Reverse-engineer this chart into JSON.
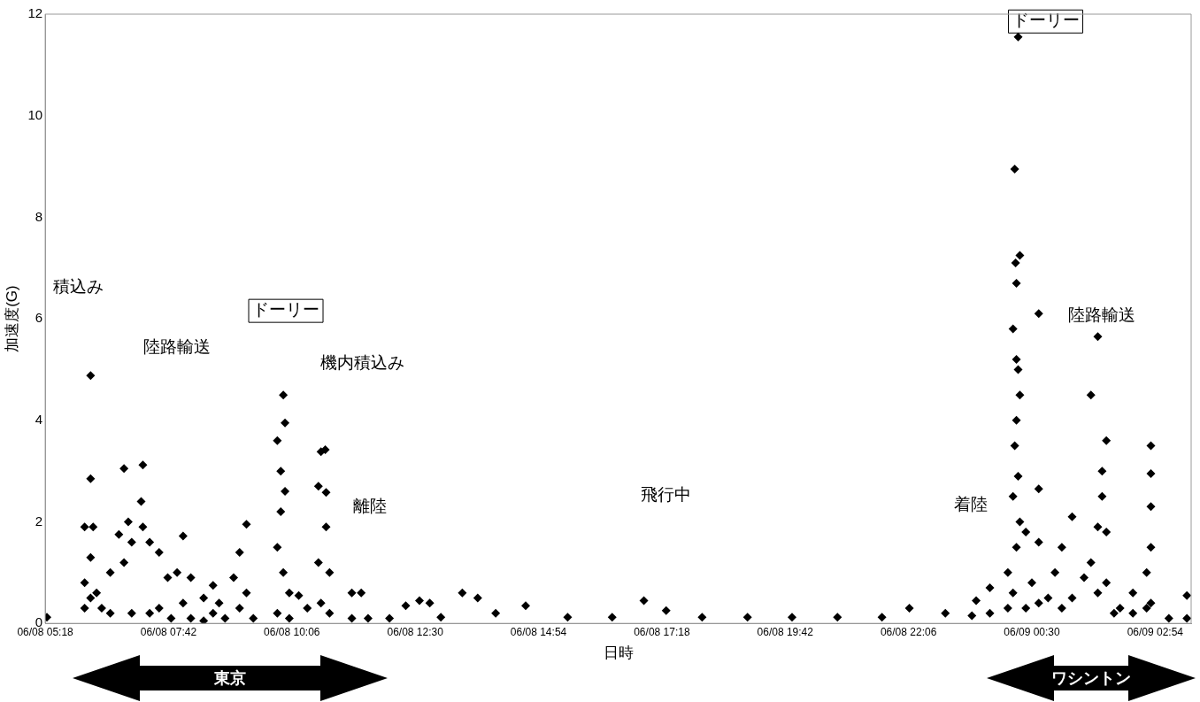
{
  "chart_data": {
    "type": "scatter",
    "xlabel": "日時",
    "ylabel": "加速度(G)",
    "xlim": [
      "--06-08T05:18",
      "--06-09T03:36"
    ],
    "xticks": [
      {
        "value": "--06-08T05:18",
        "label": "06/08 05:18"
      },
      {
        "value": "--06-08T07:42",
        "label": "06/08 07:42"
      },
      {
        "value": "--06-08T10:06",
        "label": "06/08 10:06"
      },
      {
        "value": "--06-08T12:30",
        "label": "06/08 12:30"
      },
      {
        "value": "--06-08T14:54",
        "label": "06/08 14:54"
      },
      {
        "value": "--06-08T17:18",
        "label": "06/08 17:18"
      },
      {
        "value": "--06-08T19:42",
        "label": "06/08 19:42"
      },
      {
        "value": "--06-08T22:06",
        "label": "06/08 22:06"
      },
      {
        "value": "--06-09T00:30",
        "label": "06/09 00:30"
      },
      {
        "value": "--06-09T02:54",
        "label": "06/09 02:54"
      }
    ],
    "ylim": [
      0,
      12
    ],
    "yticks": [
      0,
      2,
      4,
      6,
      8,
      10,
      12
    ],
    "grid": false,
    "legend": false,
    "marker": "diamond",
    "series": [
      {
        "color": "#000000",
        "x": [
          "--06-08T05:20",
          "--06-08T06:04",
          "--06-08T06:04",
          "--06-08T06:04",
          "--06-08T06:11",
          "--06-08T06:11",
          "--06-08T06:11",
          "--06-08T06:11",
          "--06-08T06:14",
          "--06-08T06:18",
          "--06-08T06:24",
          "--06-08T06:34",
          "--06-08T06:34",
          "--06-08T06:44",
          "--06-08T06:50",
          "--06-08T06:50",
          "--06-08T06:55",
          "--06-08T06:59",
          "--06-08T06:59",
          "--06-08T07:10",
          "--06-08T07:12",
          "--06-08T07:12",
          "--06-08T07:20",
          "--06-08T07:20",
          "--06-08T07:31",
          "--06-08T07:31",
          "--06-08T07:41",
          "--06-08T07:45",
          "--06-08T07:52",
          "--06-08T07:59",
          "--06-08T07:59",
          "--06-08T08:08",
          "--06-08T08:08",
          "--06-08T08:23",
          "--06-08T08:23",
          "--06-08T08:34",
          "--06-08T08:34",
          "--06-08T08:41",
          "--06-08T08:48",
          "--06-08T08:58",
          "--06-08T09:05",
          "--06-08T09:05",
          "--06-08T09:13",
          "--06-08T09:13",
          "--06-08T09:21",
          "--06-08T09:49",
          "--06-08T09:49",
          "--06-08T09:49",
          "--06-08T09:53",
          "--06-08T09:53",
          "--06-08T09:56",
          "--06-08T09:56",
          "--06-08T09:58",
          "--06-08T09:58",
          "--06-08T10:03",
          "--06-08T10:03",
          "--06-08T10:14",
          "--06-08T10:24",
          "--06-08T10:37",
          "--06-08T10:37",
          "--06-08T10:40",
          "--06-08T10:40",
          "--06-08T10:45",
          "--06-08T10:46",
          "--06-08T10:46",
          "--06-08T10:50",
          "--06-08T10:50",
          "--06-08T11:16",
          "--06-08T11:16",
          "--06-08T11:27",
          "--06-08T11:35",
          "--06-08T12:00",
          "--06-08T12:19",
          "--06-08T12:35",
          "--06-08T12:47",
          "--06-08T13:00",
          "--06-08T13:25",
          "--06-08T13:43",
          "--06-08T14:04",
          "--06-08T14:39",
          "--06-08T15:28",
          "--06-08T16:20",
          "--06-08T16:57",
          "--06-08T17:23",
          "--06-08T18:05",
          "--06-08T18:58",
          "--06-08T19:50",
          "--06-08T20:43",
          "--06-08T21:35",
          "--06-08T22:07",
          "--06-08T22:49",
          "--06-08T23:20",
          "--06-08T23:25",
          "--06-08T23:41",
          "--06-08T23:41",
          "--06-09T00:02",
          "--06-09T00:02",
          "--06-09T00:08",
          "--06-09T00:08",
          "--06-09T00:08",
          "--06-09T00:10",
          "--06-09T00:10",
          "--06-09T00:11",
          "--06-09T00:12",
          "--06-09T00:12",
          "--06-09T00:12",
          "--06-09T00:12",
          "--06-09T00:14",
          "--06-09T00:14",
          "--06-09T00:14",
          "--06-09T00:16",
          "--06-09T00:16",
          "--06-09T00:16",
          "--06-09T00:23",
          "--06-09T00:23",
          "--06-09T00:30",
          "--06-09T00:38",
          "--06-09T00:38",
          "--06-09T00:38",
          "--06-09T00:38",
          "--06-09T00:49",
          "--06-09T00:57",
          "--06-09T01:05",
          "--06-09T01:05",
          "--06-09T01:17",
          "--06-09T01:17",
          "--06-09T01:31",
          "--06-09T01:39",
          "--06-09T01:39",
          "--06-09T01:47",
          "--06-09T01:47",
          "--06-09T01:47",
          "--06-09T01:52",
          "--06-09T01:52",
          "--06-09T01:57",
          "--06-09T01:57",
          "--06-09T01:57",
          "--06-09T02:06",
          "--06-09T02:13",
          "--06-09T02:28",
          "--06-09T02:28",
          "--06-09T02:44",
          "--06-09T02:44",
          "--06-09T02:49",
          "--06-09T02:49",
          "--06-09T02:49",
          "--06-09T02:49",
          "--06-09T02:49",
          "--06-09T03:10",
          "--06-09T03:31",
          "--06-09T03:31"
        ],
        "values": [
          0.12,
          1.9,
          0.8,
          0.3,
          4.88,
          2.85,
          1.3,
          0.5,
          1.9,
          0.6,
          0.3,
          1.0,
          0.2,
          1.75,
          3.05,
          1.2,
          2.0,
          1.6,
          0.2,
          2.4,
          3.12,
          1.9,
          1.6,
          0.2,
          1.4,
          0.3,
          0.9,
          0.1,
          1.0,
          1.72,
          0.4,
          0.9,
          0.1,
          0.5,
          0.05,
          0.75,
          0.2,
          0.4,
          0.1,
          0.9,
          1.4,
          0.3,
          1.95,
          0.6,
          0.1,
          3.6,
          1.5,
          0.2,
          3.0,
          2.2,
          4.5,
          1.0,
          3.95,
          2.6,
          0.6,
          0.1,
          0.55,
          0.3,
          2.7,
          1.2,
          3.38,
          0.4,
          3.42,
          2.58,
          1.9,
          1.0,
          0.2,
          0.6,
          0.1,
          0.6,
          0.1,
          0.1,
          0.35,
          0.45,
          0.4,
          0.12,
          0.6,
          0.5,
          0.2,
          0.35,
          0.12,
          0.12,
          0.45,
          0.25,
          0.12,
          0.12,
          0.12,
          0.12,
          0.12,
          0.3,
          0.2,
          0.15,
          0.45,
          0.7,
          0.2,
          1.0,
          0.3,
          5.8,
          2.5,
          0.6,
          8.95,
          3.5,
          7.1,
          6.7,
          5.2,
          4.0,
          1.5,
          11.55,
          5.0,
          2.9,
          7.25,
          4.5,
          2.0,
          1.8,
          0.3,
          0.8,
          6.1,
          2.65,
          1.6,
          0.4,
          0.5,
          1.0,
          1.5,
          0.3,
          2.1,
          0.5,
          0.9,
          4.5,
          1.2,
          5.65,
          1.9,
          0.6,
          3.0,
          2.5,
          3.6,
          1.8,
          0.8,
          0.2,
          0.3,
          0.6,
          0.2,
          1.0,
          0.3,
          3.5,
          2.95,
          2.3,
          1.5,
          0.4,
          0.1,
          0.55,
          0.1
        ]
      }
    ],
    "annotations": [
      "積込み",
      "陸路輸送",
      "ドーリー",
      "機内積込み",
      "離陸",
      "飛行中",
      "着陸",
      "ドーリー",
      "陸路輸送",
      "東京",
      "ワシントン"
    ]
  }
}
